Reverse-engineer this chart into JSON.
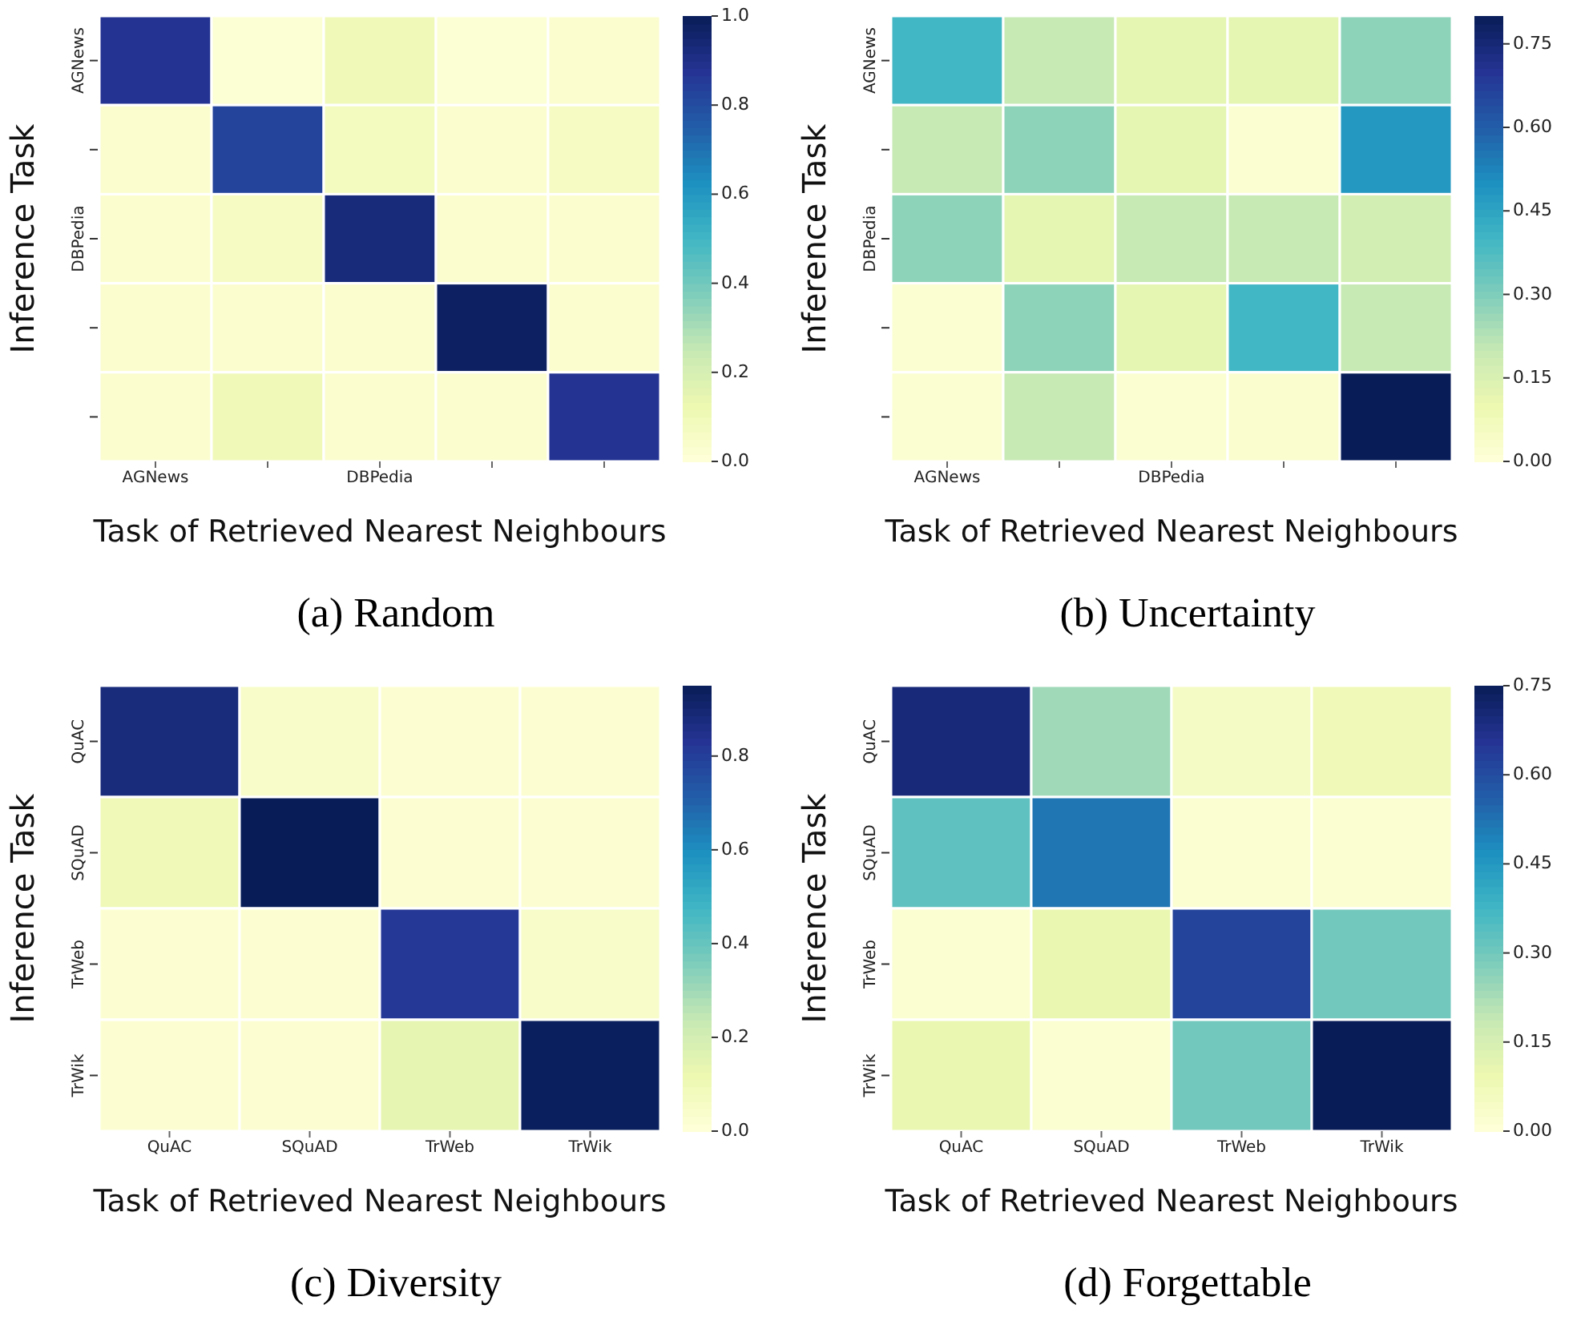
{
  "chart_data": [
    {
      "type": "heatmap",
      "title": "(a) Random",
      "xlabel": "Task of Retrieved Nearest Neighbours",
      "ylabel": "Inference Task",
      "categories": [
        "AGNews",
        null,
        "DBPedia",
        null,
        null
      ],
      "y_categories": [
        "AGNews",
        null,
        "DBPedia",
        null,
        null
      ],
      "cells": [
        [
          0.88,
          0.02,
          0.1,
          0.02,
          0.03
        ],
        [
          0.03,
          0.83,
          0.08,
          0.03,
          0.07
        ],
        [
          0.03,
          0.07,
          0.93,
          0.03,
          0.03
        ],
        [
          0.03,
          0.03,
          0.03,
          0.98,
          0.03
        ],
        [
          0.03,
          0.1,
          0.03,
          0.03,
          0.88
        ]
      ],
      "clim": [
        0,
        1
      ],
      "cticks": [
        {
          "value": 0,
          "label": "0.0"
        },
        {
          "value": 0.2,
          "label": "0.2"
        },
        {
          "value": 0.4,
          "label": "0.4"
        },
        {
          "value": 0.6,
          "label": "0.6"
        },
        {
          "value": 0.8,
          "label": "0.8"
        },
        {
          "value": 1,
          "label": "1.0"
        }
      ]
    },
    {
      "type": "heatmap",
      "title": "(b) Uncertainty",
      "xlabel": "Task of Retrieved Nearest Neighbours",
      "ylabel": "Inference Task",
      "categories": [
        "AGNews",
        null,
        "DBPedia",
        null,
        null
      ],
      "y_categories": [
        "AGNews",
        null,
        "DBPedia",
        null,
        null
      ],
      "cells": [
        [
          0.4,
          0.2,
          0.12,
          0.12,
          0.28
        ],
        [
          0.2,
          0.28,
          0.12,
          0.02,
          0.48
        ],
        [
          0.28,
          0.12,
          0.2,
          0.2,
          0.17
        ],
        [
          0.02,
          0.28,
          0.12,
          0.4,
          0.2
        ],
        [
          0.02,
          0.2,
          0.02,
          0.03,
          0.8
        ]
      ],
      "clim": [
        0,
        0.8
      ],
      "cticks": [
        {
          "value": 0,
          "label": "0.00"
        },
        {
          "value": 0.15,
          "label": "0.15"
        },
        {
          "value": 0.3,
          "label": "0.30"
        },
        {
          "value": 0.45,
          "label": "0.45"
        },
        {
          "value": 0.6,
          "label": "0.60"
        },
        {
          "value": 0.75,
          "label": "0.75"
        }
      ]
    },
    {
      "type": "heatmap",
      "title": "(c) Diversity",
      "xlabel": "Task of Retrieved Nearest Neighbours",
      "ylabel": "Inference Task",
      "categories": [
        "QuAC",
        "SQuAD",
        "TrWeb",
        "TrWik"
      ],
      "y_categories": [
        "QuAC",
        "SQuAD",
        "TrWeb",
        "TrWik"
      ],
      "cells": [
        [
          0.88,
          0.05,
          0.02,
          0.02
        ],
        [
          0.1,
          0.95,
          0.02,
          0.02
        ],
        [
          0.02,
          0.02,
          0.82,
          0.05
        ],
        [
          0.02,
          0.02,
          0.14,
          0.94
        ]
      ],
      "clim": [
        0,
        0.95
      ],
      "cticks": [
        {
          "value": 0,
          "label": "0.0"
        },
        {
          "value": 0.2,
          "label": "0.2"
        },
        {
          "value": 0.4,
          "label": "0.4"
        },
        {
          "value": 0.6,
          "label": "0.6"
        },
        {
          "value": 0.8,
          "label": "0.8"
        }
      ]
    },
    {
      "type": "heatmap",
      "title": "(d) Forgettable",
      "xlabel": "Task of Retrieved Nearest Neighbours",
      "ylabel": "Inference Task",
      "categories": [
        "QuAC",
        "SQuAD",
        "TrWeb",
        "TrWik"
      ],
      "y_categories": [
        "QuAC",
        "SQuAD",
        "TrWeb",
        "TrWik"
      ],
      "cells": [
        [
          0.7,
          0.24,
          0.05,
          0.08
        ],
        [
          0.33,
          0.52,
          0.02,
          0.02
        ],
        [
          0.02,
          0.1,
          0.62,
          0.3
        ],
        [
          0.1,
          0.02,
          0.3,
          0.75
        ]
      ],
      "clim": [
        0,
        0.75
      ],
      "cticks": [
        {
          "value": 0,
          "label": "0.00"
        },
        {
          "value": 0.15,
          "label": "0.15"
        },
        {
          "value": 0.3,
          "label": "0.30"
        },
        {
          "value": 0.45,
          "label": "0.45"
        },
        {
          "value": 0.6,
          "label": "0.60"
        },
        {
          "value": 0.75,
          "label": "0.75"
        }
      ]
    }
  ]
}
